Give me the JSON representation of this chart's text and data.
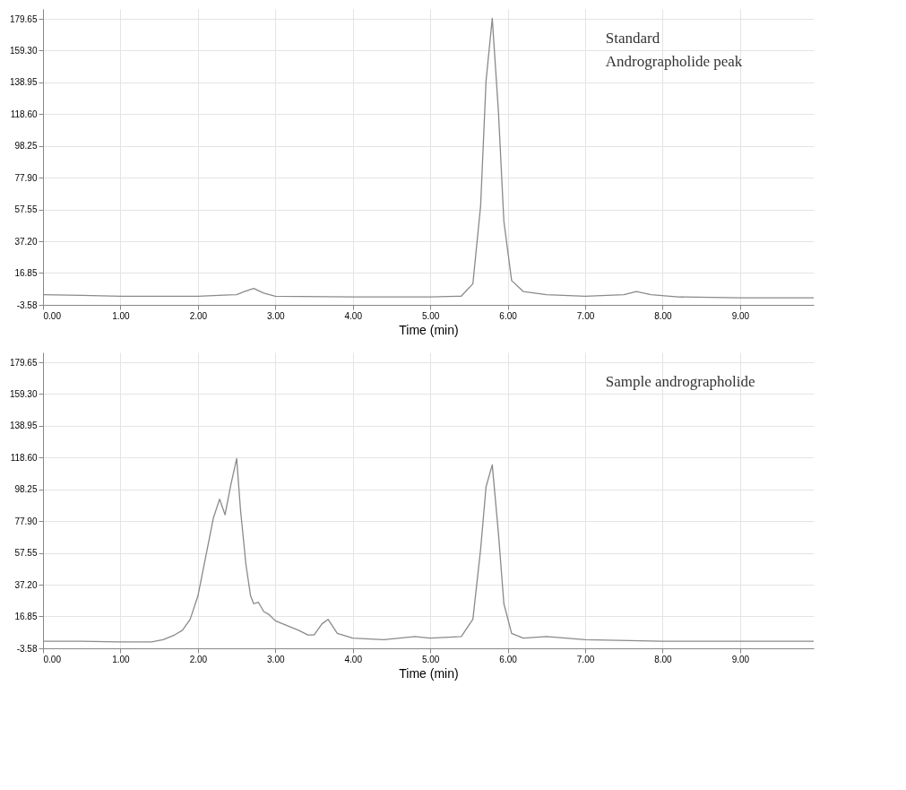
{
  "chart_data": [
    {
      "type": "line",
      "xlabel": "Time (min)",
      "annotations": [
        "Standard",
        "Andrographolide peak"
      ],
      "grid": true,
      "marker": "none",
      "line_style": "solid",
      "xlim": [
        0,
        9.95
      ],
      "ylim": [
        -3.58,
        186
      ],
      "xticks": [
        {
          "value": 0,
          "label": "0.00"
        },
        {
          "value": 1,
          "label": "1.00"
        },
        {
          "value": 2,
          "label": "2.00"
        },
        {
          "value": 3,
          "label": "3.00"
        },
        {
          "value": 4,
          "label": "4.00"
        },
        {
          "value": 5,
          "label": "5.00"
        },
        {
          "value": 6,
          "label": "6.00"
        },
        {
          "value": 7,
          "label": "7.00"
        },
        {
          "value": 8,
          "label": "8.00"
        },
        {
          "value": 9,
          "label": "9.00"
        }
      ],
      "yticks": [
        -3.58,
        16.85,
        {
          "value": 37.2,
          "label": "37.20"
        },
        57.55,
        {
          "value": 77.9,
          "label": "77.90"
        },
        98.25,
        {
          "value": 118.6,
          "label": "118.60"
        },
        138.95,
        {
          "value": 159.3,
          "label": "159.30"
        },
        179.65
      ],
      "series": [
        {
          "color": "#8a8a8a",
          "x": [
            0,
            0.5,
            1,
            1.5,
            2,
            2.5,
            2.6,
            2.72,
            2.85,
            3,
            4,
            5,
            5.4,
            5.55,
            5.65,
            5.72,
            5.8,
            5.88,
            5.95,
            6.05,
            6.2,
            6.5,
            7,
            7.5,
            7.66,
            7.85,
            8.2,
            9,
            9.95
          ],
          "values": [
            3,
            2.5,
            2,
            2,
            2,
            3,
            5,
            7,
            4,
            2,
            1.5,
            1.5,
            2,
            10,
            60,
            140,
            180,
            120,
            50,
            12,
            5,
            3,
            2,
            3,
            5,
            3,
            1.5,
            1,
            1
          ]
        }
      ]
    },
    {
      "type": "line",
      "xlabel": "Time (min)",
      "annotations": [
        "Sample andrographolide"
      ],
      "grid": true,
      "marker": "none",
      "line_style": "solid",
      "xlim": [
        0,
        9.95
      ],
      "ylim": [
        -3.58,
        186
      ],
      "xticks": [
        {
          "value": 0,
          "label": "0.00"
        },
        {
          "value": 1,
          "label": "1.00"
        },
        {
          "value": 2,
          "label": "2.00"
        },
        {
          "value": 3,
          "label": "3.00"
        },
        {
          "value": 4,
          "label": "4.00"
        },
        {
          "value": 5,
          "label": "5.00"
        },
        {
          "value": 6,
          "label": "6.00"
        },
        {
          "value": 7,
          "label": "7.00"
        },
        {
          "value": 8,
          "label": "8.00"
        },
        {
          "value": 9,
          "label": "9.00"
        }
      ],
      "yticks": [
        -3.58,
        16.85,
        {
          "value": 37.2,
          "label": "37.20"
        },
        57.55,
        {
          "value": 77.9,
          "label": "77.90"
        },
        98.25,
        {
          "value": 118.6,
          "label": "118.60"
        },
        138.95,
        {
          "value": 159.3,
          "label": "159.30"
        },
        179.65
      ],
      "series": [
        {
          "color": "#8a8a8a",
          "x": [
            0,
            0.5,
            1,
            1.4,
            1.55,
            1.7,
            1.8,
            1.9,
            2.0,
            2.1,
            2.2,
            2.28,
            2.35,
            2.42,
            2.5,
            2.55,
            2.62,
            2.68,
            2.72,
            2.78,
            2.85,
            2.92,
            3.0,
            3.15,
            3.3,
            3.42,
            3.5,
            3.6,
            3.68,
            3.8,
            4,
            4.4,
            4.8,
            5.0,
            5.4,
            5.55,
            5.65,
            5.72,
            5.8,
            5.88,
            5.95,
            6.05,
            6.2,
            6.5,
            7,
            8,
            9,
            9.95
          ],
          "values": [
            1,
            1,
            0.5,
            0.5,
            2,
            5,
            8,
            15,
            30,
            55,
            80,
            92,
            82,
            100,
            118,
            85,
            50,
            30,
            25,
            26,
            20,
            18,
            14,
            11,
            8,
            5,
            5,
            12,
            15,
            6,
            3,
            2,
            4,
            3,
            4,
            15,
            60,
            100,
            114,
            70,
            25,
            6,
            3,
            4,
            2,
            1,
            1,
            1
          ]
        }
      ]
    }
  ]
}
